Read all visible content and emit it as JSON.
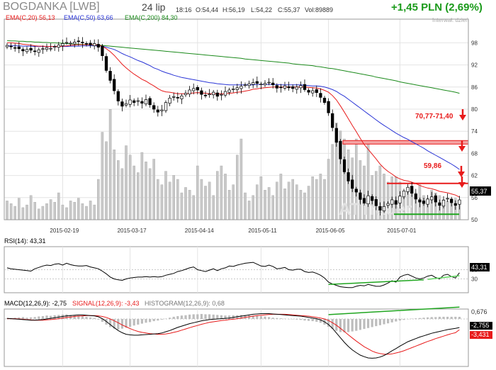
{
  "header": {
    "ticker": "BOGDANKA [LWB]",
    "date": "24 lip",
    "time": "18:16",
    "open": "O:54,44",
    "high": "H:56,19",
    "low": "L:54,22",
    "close": "C:55,37",
    "volume": "Vol:89889",
    "change": "+1,45 PLN (2,69%)",
    "interval": "Interwał: dzień"
  },
  "colors": {
    "ema20": "#e81b1b",
    "ema50": "#2a35d6",
    "ema200": "#1b8a1b",
    "level": "#e81b1b",
    "support": "#1fa51f",
    "change": "#1a9a1a",
    "volume": "#c8c8c8"
  },
  "chart_data": [
    {
      "type": "candlestick",
      "title": "BOGDANKA [LWB]",
      "legend": [
        "EMA(C,20) 56,13",
        "EMA(C,50) 63,66",
        "EMA(C,200) 84,30"
      ],
      "x_tick_labels": [
        "2015-02-19",
        "2015-03-17",
        "2015-04-14",
        "2015-05-11",
        "2015-06-05",
        "2015-07-01"
      ],
      "y_tick_labels": [
        "98",
        "92",
        "86",
        "80",
        "74",
        "68",
        "62",
        "56",
        "50"
      ],
      "ylim": [
        50,
        100
      ],
      "grid": true,
      "close_label": "55,37",
      "annotations": [
        "70,77-71,40",
        "59,86"
      ],
      "levels": [
        71.1,
        59.86
      ],
      "support_level": 51.5,
      "watermark": "ATTrader",
      "close": [
        97.3,
        96.9,
        96.6,
        96.4,
        95.8,
        96.2,
        96.0,
        95.6,
        96.1,
        96.4,
        96.7,
        96.5,
        97.0,
        97.4,
        97.8,
        98.1,
        97.9,
        98.2,
        98.4,
        98.0,
        97.6,
        97.4,
        97.8,
        96.8,
        94.5,
        90.5,
        87.8,
        85.0,
        82.2,
        80.8,
        81.5,
        82.5,
        81.8,
        82.3,
        81.6,
        82.6,
        81.2,
        80.0,
        79.2,
        79.8,
        81.8,
        83.0,
        83.4,
        83.0,
        83.6,
        84.3,
        85.2,
        85.6,
        85.2,
        84.0,
        83.6,
        84.1,
        84.6,
        83.5,
        84.0,
        84.8,
        85.2,
        85.5,
        85.8,
        86.2,
        86.6,
        86.9,
        87.2,
        87.0,
        86.8,
        87.0,
        87.3,
        86.6,
        85.7,
        85.9,
        86.3,
        85.8,
        85.6,
        86.0,
        86.4,
        85.3,
        84.6,
        85.0,
        84.5,
        83.2,
        81.8,
        79.0,
        75.0,
        71.0,
        66.5,
        63.0,
        60.5,
        58.5,
        57.5,
        55.5,
        54.5,
        56.5,
        55.2,
        53.8,
        52.6,
        53.6,
        54.4,
        55.4,
        54.2,
        56.4,
        57.8,
        58.8,
        57.2,
        55.6,
        54.8,
        54.4,
        55.6,
        56.2,
        54.8,
        53.9,
        55.3,
        55.8,
        54.6,
        53.9,
        55.37
      ],
      "volume": [
        14,
        12,
        10,
        16,
        9,
        11,
        18,
        13,
        8,
        10,
        12,
        15,
        13,
        20,
        11,
        9,
        14,
        13,
        16,
        12,
        10,
        14,
        11,
        30,
        65,
        58,
        82,
        52,
        44,
        38,
        55,
        48,
        40,
        35,
        50,
        43,
        38,
        45,
        30,
        26,
        36,
        28,
        33,
        30,
        20,
        24,
        22,
        18,
        40,
        30,
        25,
        28,
        18,
        36,
        40,
        34,
        22,
        26,
        48,
        60,
        20,
        14,
        18,
        26,
        32,
        22,
        24,
        18,
        28,
        34,
        23,
        28,
        30,
        26,
        22,
        20,
        25,
        32,
        30,
        34,
        30,
        45,
        56,
        72,
        66,
        60,
        52,
        46,
        60,
        44,
        40,
        56,
        33,
        36,
        40,
        34,
        28,
        32,
        32,
        28,
        18,
        24,
        22,
        20,
        26,
        18,
        16,
        22,
        20,
        18,
        15,
        14,
        12,
        16,
        13
      ],
      "ema20": [
        98.0,
        98.0,
        97.9,
        97.8,
        97.6,
        97.5,
        97.4,
        97.2,
        97.1,
        97.1,
        97.0,
        97.0,
        97.0,
        97.0,
        97.1,
        97.2,
        97.3,
        97.4,
        97.5,
        97.5,
        97.5,
        97.5,
        97.5,
        97.4,
        97.1,
        96.4,
        95.6,
        94.6,
        93.4,
        92.2,
        91.2,
        90.3,
        89.5,
        88.8,
        88.1,
        87.6,
        86.9,
        86.3,
        85.6,
        85.0,
        84.7,
        84.6,
        84.4,
        84.2,
        84.2,
        84.2,
        84.3,
        84.4,
        84.5,
        84.4,
        84.3,
        84.2,
        84.2,
        84.2,
        84.2,
        84.2,
        84.3,
        84.4,
        84.6,
        84.7,
        84.9,
        85.1,
        85.4,
        85.5,
        85.7,
        85.8,
        85.9,
        86.0,
        86.0,
        86.0,
        86.0,
        86.0,
        86.0,
        86.0,
        86.0,
        86.0,
        85.9,
        85.8,
        85.7,
        85.5,
        85.1,
        84.6,
        83.7,
        82.5,
        80.9,
        79.2,
        77.4,
        75.6,
        73.9,
        72.1,
        70.4,
        69.1,
        67.8,
        66.5,
        65.1,
        64.0,
        63.1,
        62.4,
        61.6,
        61.1,
        60.7,
        60.5,
        60.2,
        59.8,
        59.3,
        58.9,
        58.6,
        58.4,
        58.1,
        57.7,
        57.5,
        57.3,
        57.0,
        56.7,
        56.13
      ],
      "ema50": [
        97.2,
        97.2,
        97.2,
        97.2,
        97.1,
        97.1,
        97.1,
        97.0,
        97.0,
        97.0,
        97.0,
        97.0,
        97.0,
        97.0,
        97.0,
        97.0,
        97.1,
        97.1,
        97.1,
        97.2,
        97.2,
        97.2,
        97.2,
        97.2,
        97.1,
        96.8,
        96.5,
        96.2,
        95.7,
        95.1,
        94.6,
        94.2,
        93.7,
        93.2,
        92.8,
        92.3,
        91.8,
        91.2,
        90.8,
        90.3,
        89.9,
        89.6,
        89.2,
        88.9,
        88.6,
        88.4,
        88.2,
        88.0,
        87.8,
        87.6,
        87.4,
        87.2,
        87.1,
        86.9,
        86.8,
        86.7,
        86.6,
        86.6,
        86.6,
        86.6,
        86.6,
        86.6,
        86.6,
        86.7,
        86.7,
        86.7,
        86.7,
        86.7,
        86.7,
        86.6,
        86.6,
        86.6,
        86.6,
        86.6,
        86.6,
        86.5,
        86.4,
        86.3,
        86.3,
        86.2,
        86.0,
        85.7,
        85.3,
        84.8,
        84.1,
        83.5,
        82.7,
        81.9,
        81.1,
        80.3,
        79.5,
        78.7,
        77.9,
        77.1,
        76.3,
        75.6,
        74.9,
        74.2,
        73.5,
        72.9,
        72.3,
        71.8,
        71.2,
        70.6,
        70.0,
        69.4,
        68.7,
        68.1,
        67.5,
        66.9,
        66.3,
        65.7,
        65.1,
        64.4,
        63.66
      ],
      "ema200": [
        98.6,
        98.5,
        98.5,
        98.4,
        98.4,
        98.3,
        98.3,
        98.2,
        98.2,
        98.1,
        98.1,
        98.0,
        98.0,
        97.9,
        97.9,
        97.8,
        97.7,
        97.7,
        97.6,
        97.6,
        97.5,
        97.5,
        97.4,
        97.4,
        97.3,
        97.2,
        97.1,
        97.0,
        96.9,
        96.8,
        96.7,
        96.6,
        96.5,
        96.4,
        96.3,
        96.2,
        96.1,
        96.0,
        95.9,
        95.8,
        95.7,
        95.6,
        95.5,
        95.4,
        95.3,
        95.2,
        95.1,
        95.0,
        94.9,
        94.8,
        94.7,
        94.6,
        94.5,
        94.4,
        94.3,
        94.2,
        94.1,
        94.0,
        93.9,
        93.8,
        93.6,
        93.5,
        93.4,
        93.3,
        93.2,
        93.1,
        93.0,
        92.9,
        92.8,
        92.7,
        92.6,
        92.5,
        92.3,
        92.2,
        92.1,
        92.0,
        91.9,
        91.8,
        91.6,
        91.5,
        91.3,
        91.1,
        91.0,
        90.8,
        90.6,
        90.4,
        90.2,
        90.0,
        89.8,
        89.6,
        89.4,
        89.2,
        89.0,
        88.7,
        88.5,
        88.3,
        88.1,
        87.9,
        87.7,
        87.4,
        87.2,
        87.0,
        86.8,
        86.6,
        86.4,
        86.2,
        86.0,
        85.8,
        85.6,
        85.4,
        85.2,
        85.0,
        84.8,
        84.6,
        84.3
      ]
    },
    {
      "type": "line",
      "legend": [
        "RSI(14): 43,31"
      ],
      "ylim": [
        0,
        100
      ],
      "y_tick_labels": [
        "50",
        "30"
      ],
      "current_label": "43,31",
      "rsi": [
        54,
        52,
        51,
        50,
        49,
        48,
        47,
        52,
        55,
        58,
        60,
        59,
        62,
        63,
        60,
        64,
        61,
        59,
        58,
        58,
        59,
        56,
        54,
        52,
        47,
        41,
        34,
        30,
        28,
        27,
        30,
        32,
        33,
        34,
        34,
        35,
        34,
        35,
        34,
        35,
        38,
        40,
        42,
        46,
        48,
        51,
        54,
        56,
        50,
        48,
        46,
        49,
        52,
        48,
        52,
        54,
        58,
        57,
        60,
        62,
        64,
        65,
        66,
        62,
        58,
        57,
        60,
        57,
        52,
        53,
        55,
        50,
        49,
        51,
        51,
        46,
        44,
        45,
        42,
        38,
        32,
        23,
        19,
        16,
        13,
        12,
        11,
        11,
        14,
        16,
        15,
        18,
        16,
        14,
        14,
        17,
        21,
        26,
        23,
        34,
        38,
        40,
        36,
        32,
        30,
        32,
        36,
        38,
        33,
        30,
        38,
        40,
        35,
        32,
        43.31
      ],
      "divergence_line": [
        [
          81,
          18
        ],
        [
          105,
          28
        ]
      ],
      "price_trend_line": [
        [
          106,
          29
        ],
        [
          114,
          37
        ]
      ]
    },
    {
      "type": "bar",
      "legend": [
        "MACD(12,26,9): -2,75",
        "SIGNAL(12,26,9): -3,43",
        "HISTOGRAM(12,26,9): 0,68"
      ],
      "ylim": [
        -15,
        4
      ],
      "y_tick_labels": [
        "0,676",
        "-2,755",
        "-3,431"
      ],
      "histogram": [
        0.2,
        0.3,
        0.4,
        0.5,
        0.6,
        0.4,
        0.5,
        0.6,
        0.8,
        0.9,
        1.1,
        1.0,
        1.2,
        1.3,
        1.4,
        1.5,
        1.3,
        1.2,
        1.1,
        0.9,
        0.7,
        0.5,
        0.3,
        -0.2,
        -0.9,
        -1.8,
        -2.6,
        -3.1,
        -3.4,
        -3.1,
        -2.8,
        -2.5,
        -2.1,
        -1.8,
        -1.5,
        -1.2,
        -1.0,
        -0.7,
        -0.5,
        -0.2,
        0.1,
        0.4,
        0.7,
        0.9,
        1.1,
        1.2,
        1.4,
        1.5,
        1.5,
        1.6,
        1.5,
        1.5,
        1.4,
        1.3,
        1.2,
        1.1,
        1.1,
        1.2,
        1.2,
        1.3,
        1.3,
        1.2,
        1.1,
        1.0,
        0.9,
        0.8,
        0.6,
        0.4,
        0.3,
        0.2,
        0.1,
        0.0,
        -0.1,
        -0.2,
        -0.3,
        -0.5,
        -0.6,
        -0.7,
        -0.9,
        -1.2,
        -1.8,
        -2.5,
        -3.2,
        -3.8,
        -4.2,
        -4.3,
        -4.2,
        -4.0,
        -3.8,
        -3.5,
        -3.2,
        -2.9,
        -2.6,
        -2.3,
        -2.0,
        -1.7,
        -1.4,
        -1.1,
        -0.8,
        -0.5,
        -0.3,
        -0.1,
        0.1,
        0.2,
        0.3,
        0.4,
        0.5,
        0.6,
        0.6,
        0.7,
        0.7,
        0.7,
        0.7,
        0.7,
        0.68
      ],
      "macd": [
        0.2,
        0.1,
        0.0,
        -0.1,
        -0.2,
        -0.3,
        -0.4,
        -0.4,
        -0.3,
        -0.2,
        0.0,
        0.2,
        0.4,
        0.6,
        0.8,
        1.0,
        1.1,
        1.2,
        1.3,
        1.3,
        1.2,
        1.1,
        1.0,
        0.7,
        0.1,
        -0.8,
        -1.8,
        -2.8,
        -3.7,
        -4.4,
        -4.9,
        -5.1,
        -5.2,
        -5.2,
        -5.1,
        -5.0,
        -4.9,
        -4.8,
        -4.7,
        -4.5,
        -4.1,
        -3.7,
        -3.2,
        -2.7,
        -2.3,
        -1.9,
        -1.5,
        -1.2,
        -0.9,
        -0.6,
        -0.4,
        -0.2,
        -0.1,
        0.0,
        0.1,
        0.2,
        0.3,
        0.5,
        0.7,
        0.9,
        1.1,
        1.3,
        1.5,
        1.6,
        1.7,
        1.7,
        1.7,
        1.6,
        1.5,
        1.4,
        1.3,
        1.2,
        1.1,
        1.0,
        0.9,
        0.7,
        0.5,
        0.3,
        0.1,
        -0.3,
        -0.9,
        -1.8,
        -3.0,
        -4.5,
        -6.0,
        -7.5,
        -8.8,
        -9.9,
        -10.8,
        -11.6,
        -12.1,
        -12.5,
        -12.6,
        -12.5,
        -12.2,
        -11.7,
        -11.0,
        -10.2,
        -9.5,
        -8.7,
        -8.0,
        -7.3,
        -6.8,
        -6.3,
        -5.8,
        -5.4,
        -5.0,
        -4.6,
        -4.3,
        -4.0,
        -3.7,
        -3.4,
        -3.2,
        -3.0,
        -2.75
      ],
      "signal": [
        0.1,
        0.1,
        0.1,
        0.0,
        -0.1,
        -0.2,
        -0.3,
        -0.4,
        -0.4,
        -0.4,
        -0.3,
        -0.2,
        -0.1,
        0.1,
        0.3,
        0.5,
        0.6,
        0.8,
        0.9,
        1.0,
        1.1,
        1.1,
        1.1,
        1.0,
        0.8,
        0.5,
        0.0,
        -0.6,
        -1.2,
        -1.9,
        -2.5,
        -3.1,
        -3.6,
        -4.0,
        -4.3,
        -4.5,
        -4.7,
        -4.8,
        -4.9,
        -4.9,
        -4.8,
        -4.6,
        -4.3,
        -4.0,
        -3.6,
        -3.2,
        -2.8,
        -2.4,
        -2.1,
        -1.7,
        -1.4,
        -1.1,
        -0.9,
        -0.7,
        -0.5,
        -0.4,
        -0.2,
        -0.1,
        0.1,
        0.3,
        0.5,
        0.7,
        0.9,
        1.1,
        1.2,
        1.3,
        1.4,
        1.5,
        1.5,
        1.5,
        1.5,
        1.4,
        1.3,
        1.2,
        1.1,
        1.0,
        0.9,
        0.7,
        0.5,
        0.3,
        0.0,
        -0.5,
        -1.2,
        -2.0,
        -3.0,
        -4.0,
        -5.1,
        -6.1,
        -7.1,
        -8.0,
        -8.9,
        -9.6,
        -10.3,
        -10.8,
        -11.1,
        -11.3,
        -11.3,
        -11.2,
        -10.9,
        -10.6,
        -10.2,
        -9.7,
        -9.2,
        -8.7,
        -8.2,
        -7.7,
        -7.2,
        -6.8,
        -6.3,
        -5.9,
        -5.5,
        -5.1,
        -4.7,
        -4.4,
        -3.43
      ],
      "trend_line": [
        [
          81,
          1.4
        ],
        [
          114,
          3.8
        ]
      ]
    }
  ]
}
